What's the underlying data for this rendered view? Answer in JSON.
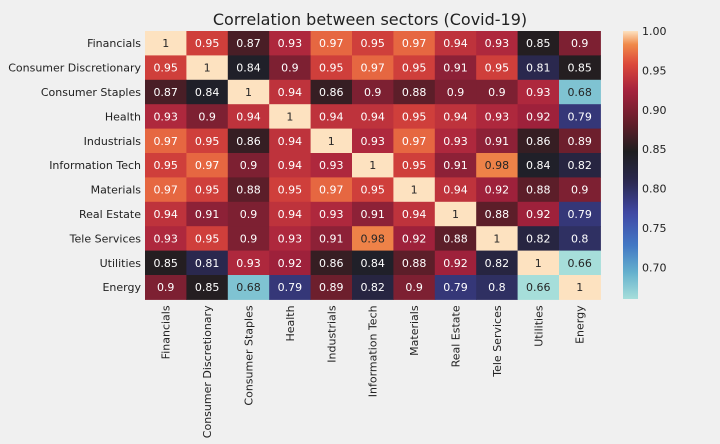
{
  "chart_data": {
    "type": "heatmap",
    "title": "Correlation between sectors (Covid-19)",
    "xlabel": "",
    "ylabel": "",
    "rows": [
      "Financials",
      "Consumer Discretionary",
      "Consumer Staples",
      "Health",
      "Industrials",
      "Information Tech",
      "Materials",
      "Real Estate",
      "Tele Services",
      "Utilities",
      "Energy"
    ],
    "columns": [
      "Financials",
      "Consumer Discretionary",
      "Consumer Staples",
      "Health",
      "Industrials",
      "Information Tech",
      "Materials",
      "Real Estate",
      "Tele Services",
      "Utilities",
      "Energy"
    ],
    "values": [
      [
        1,
        0.95,
        0.87,
        0.93,
        0.97,
        0.95,
        0.97,
        0.94,
        0.93,
        0.85,
        0.9
      ],
      [
        0.95,
        1,
        0.84,
        0.9,
        0.95,
        0.97,
        0.95,
        0.91,
        0.95,
        0.81,
        0.85
      ],
      [
        0.87,
        0.84,
        1,
        0.94,
        0.86,
        0.9,
        0.88,
        0.9,
        0.9,
        0.93,
        0.68
      ],
      [
        0.93,
        0.9,
        0.94,
        1,
        0.94,
        0.94,
        0.95,
        0.94,
        0.93,
        0.92,
        0.79
      ],
      [
        0.97,
        0.95,
        0.86,
        0.94,
        1,
        0.93,
        0.97,
        0.93,
        0.91,
        0.86,
        0.89
      ],
      [
        0.95,
        0.97,
        0.9,
        0.94,
        0.93,
        1,
        0.95,
        0.91,
        0.98,
        0.84,
        0.82
      ],
      [
        0.97,
        0.95,
        0.88,
        0.95,
        0.97,
        0.95,
        1,
        0.94,
        0.92,
        0.88,
        0.9
      ],
      [
        0.94,
        0.91,
        0.9,
        0.94,
        0.93,
        0.91,
        0.94,
        1,
        0.88,
        0.92,
        0.79
      ],
      [
        0.93,
        0.95,
        0.9,
        0.93,
        0.91,
        0.98,
        0.92,
        0.88,
        1,
        0.82,
        0.8
      ],
      [
        0.85,
        0.81,
        0.93,
        0.92,
        0.86,
        0.84,
        0.88,
        0.92,
        0.82,
        1,
        0.66
      ],
      [
        0.9,
        0.85,
        0.68,
        0.79,
        0.89,
        0.82,
        0.9,
        0.79,
        0.8,
        0.66,
        1
      ]
    ],
    "colorbar": {
      "range": [
        0.66,
        1.0
      ],
      "ticks": [
        "1.00",
        "0.95",
        "0.90",
        "0.85",
        "0.80",
        "0.75",
        "0.70"
      ]
    },
    "colormap": "icefire",
    "annotations": true,
    "grid": false,
    "legend": "colorbar-right"
  },
  "colors": {
    "background": "#f0f0f0",
    "text": "#222222"
  }
}
